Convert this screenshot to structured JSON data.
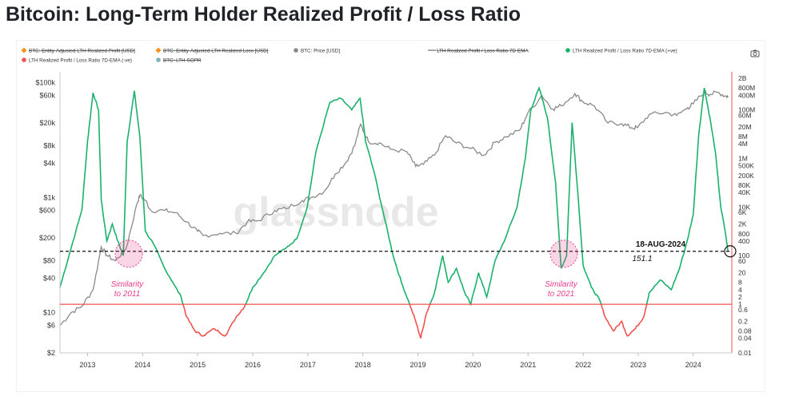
{
  "page": {
    "title": "Bitcoin: Long-Term Holder Realized Profit / Loss Ratio"
  },
  "legend": [
    {
      "label": "BTC: Entity-Adjusted LTH Realized Profit [USD]",
      "color": "#f7931a",
      "marker": "diamond",
      "struck": true
    },
    {
      "label": "BTC: Entity-Adjusted LTH Realized Loss [USD]",
      "color": "#f7931a",
      "marker": "diamond",
      "struck": true
    },
    {
      "label": "BTC: Price [USD]",
      "color": "#888888",
      "marker": "dot",
      "struck": false
    },
    {
      "label": "LTH Realized Profit / Loss Ratio 7D-EMA",
      "color": "#888888",
      "marker": "line",
      "struck": true
    },
    {
      "label": "LTH Realized Profit / Loss Ratio 7D-EMA (+ve)",
      "color": "#1ab26b",
      "marker": "dot",
      "struck": false
    },
    {
      "label": "LTH Realized Profit / Loss Ratio 7D-EMA (-ve)",
      "color": "#ef5350",
      "marker": "dot",
      "struck": false
    },
    {
      "label": "BTC: LTH-SOPR",
      "color": "#7fb3b3",
      "marker": "dot",
      "struck": true
    }
  ],
  "camera_icon": "camera-icon",
  "watermark": "glassnode",
  "colors": {
    "positive": "#1ab26b",
    "negative": "#ef5350",
    "price": "#8a8a8a",
    "baseline": "#ef5350",
    "highlight": "#e6408f"
  },
  "annotations": {
    "date_label": "18-AUG-2024",
    "value_label": "151.1",
    "similarity_left": [
      "Similarity",
      "to 2011"
    ],
    "similarity_right": [
      "Similarity",
      "to 2021"
    ]
  },
  "chart_data": {
    "type": "line",
    "x_axis": {
      "ticks": [
        "2013",
        "2014",
        "2015",
        "2016",
        "2017",
        "2018",
        "2019",
        "2020",
        "2021",
        "2022",
        "2023",
        "2024"
      ],
      "range": [
        "2012-06",
        "2024-09"
      ]
    },
    "y_axis_left": {
      "label": "BTC: Price [USD]",
      "scale": "log",
      "ticks": [
        "$100k",
        "$60k",
        "$20k",
        "$8k",
        "$4k",
        "$1k",
        "$600",
        "$200",
        "$80",
        "$40",
        "$10",
        "$6",
        "$2"
      ],
      "tick_values": [
        100000,
        60000,
        20000,
        8000,
        4000,
        1000,
        600,
        200,
        80,
        40,
        10,
        6,
        2
      ],
      "range": [
        2,
        120000
      ]
    },
    "y_axis_right": {
      "label": "LTH Realized Profit / Loss Ratio 7D-EMA",
      "scale": "log",
      "ticks": [
        "2B",
        "800M",
        "400M",
        "100M",
        "60M",
        "20M",
        "8M",
        "4M",
        "1M",
        "500K",
        "200K",
        "80K",
        "40K",
        "10K",
        "6K",
        "2K",
        "800",
        "400",
        "100",
        "60",
        "20",
        "8",
        "4",
        "2",
        "1",
        "0.6",
        "0.2",
        "0.08",
        "0.04",
        "0.01"
      ],
      "tick_values": [
        2000000000,
        800000000,
        400000000,
        100000000,
        60000000,
        20000000,
        8000000,
        4000000,
        1000000,
        500000,
        200000,
        80000,
        40000,
        10000,
        6000,
        2000,
        800,
        400,
        100,
        60,
        20,
        8,
        4,
        2,
        1,
        0.6,
        0.2,
        0.08,
        0.04,
        0.01
      ],
      "range": [
        0.01,
        2000000000
      ]
    },
    "reference_lines": [
      {
        "axis": "right",
        "value": 151.1,
        "style": "dashed",
        "label": "18-AUG-2024"
      },
      {
        "axis": "right",
        "value": 1,
        "style": "solid",
        "color": "#ef5350"
      }
    ],
    "series": [
      {
        "name": "BTC: Price [USD]",
        "axis": "left",
        "color": "#8a8a8a",
        "points": [
          [
            2012.5,
            6
          ],
          [
            2012.7,
            10
          ],
          [
            2012.9,
            13
          ],
          [
            2013.1,
            25
          ],
          [
            2013.25,
            140
          ],
          [
            2013.35,
            100
          ],
          [
            2013.5,
            80
          ],
          [
            2013.7,
            130
          ],
          [
            2013.9,
            800
          ],
          [
            2013.95,
            1100
          ],
          [
            2014.05,
            900
          ],
          [
            2014.15,
            600
          ],
          [
            2014.4,
            600
          ],
          [
            2014.6,
            550
          ],
          [
            2014.8,
            380
          ],
          [
            2015.0,
            260
          ],
          [
            2015.1,
            220
          ],
          [
            2015.4,
            240
          ],
          [
            2015.7,
            240
          ],
          [
            2015.9,
            380
          ],
          [
            2016.1,
            400
          ],
          [
            2016.4,
            600
          ],
          [
            2016.6,
            650
          ],
          [
            2016.9,
            900
          ],
          [
            2017.05,
            1000
          ],
          [
            2017.3,
            1300
          ],
          [
            2017.5,
            2600
          ],
          [
            2017.7,
            4200
          ],
          [
            2017.85,
            8000
          ],
          [
            2017.96,
            19000
          ],
          [
            2018.1,
            9500
          ],
          [
            2018.3,
            9000
          ],
          [
            2018.5,
            7000
          ],
          [
            2018.8,
            6300
          ],
          [
            2018.96,
            3500
          ],
          [
            2019.1,
            3800
          ],
          [
            2019.3,
            5500
          ],
          [
            2019.5,
            12000
          ],
          [
            2019.7,
            9000
          ],
          [
            2019.96,
            7200
          ],
          [
            2020.2,
            5500
          ],
          [
            2020.4,
            9200
          ],
          [
            2020.6,
            11500
          ],
          [
            2020.85,
            15000
          ],
          [
            2020.99,
            29000
          ],
          [
            2021.25,
            60000
          ],
          [
            2021.45,
            35000
          ],
          [
            2021.6,
            40000
          ],
          [
            2021.85,
            65000
          ],
          [
            2021.99,
            47000
          ],
          [
            2022.2,
            40000
          ],
          [
            2022.45,
            20000
          ],
          [
            2022.7,
            19500
          ],
          [
            2022.88,
            16500
          ],
          [
            2022.99,
            16600
          ],
          [
            2023.2,
            28000
          ],
          [
            2023.5,
            30500
          ],
          [
            2023.7,
            27000
          ],
          [
            2023.9,
            37000
          ],
          [
            2024.0,
            43000
          ],
          [
            2024.2,
            70000
          ],
          [
            2024.3,
            63000
          ],
          [
            2024.45,
            68000
          ],
          [
            2024.6,
            58000
          ],
          [
            2024.63,
            59000
          ]
        ]
      },
      {
        "name": "LTH Realized Profit / Loss Ratio 7D-EMA",
        "axis": "right",
        "threshold": 1,
        "color_above": "#1ab26b",
        "color_below": "#ef5350",
        "points": [
          [
            2012.5,
            5
          ],
          [
            2012.7,
            200
          ],
          [
            2012.9,
            8000
          ],
          [
            2013.0,
            5000000
          ],
          [
            2013.1,
            500000000
          ],
          [
            2013.2,
            100000000
          ],
          [
            2013.25,
            20000
          ],
          [
            2013.35,
            400
          ],
          [
            2013.45,
            2000
          ],
          [
            2013.55,
            400
          ],
          [
            2013.65,
            100
          ],
          [
            2013.72,
            5000000
          ],
          [
            2013.85,
            600000000
          ],
          [
            2013.95,
            8000000
          ],
          [
            2014.05,
            1000
          ],
          [
            2014.2,
            300
          ],
          [
            2014.4,
            30
          ],
          [
            2014.55,
            8
          ],
          [
            2014.7,
            2
          ],
          [
            2014.8,
            0.3
          ],
          [
            2014.95,
            0.08
          ],
          [
            2015.1,
            0.05
          ],
          [
            2015.3,
            0.1
          ],
          [
            2015.5,
            0.05
          ],
          [
            2015.7,
            0.3
          ],
          [
            2015.85,
            0.8
          ],
          [
            2016.0,
            5
          ],
          [
            2016.2,
            20
          ],
          [
            2016.4,
            100
          ],
          [
            2016.6,
            200
          ],
          [
            2016.8,
            500
          ],
          [
            2016.99,
            10000
          ],
          [
            2017.15,
            2000000
          ],
          [
            2017.4,
            200000000
          ],
          [
            2017.6,
            300000000
          ],
          [
            2017.8,
            100000000
          ],
          [
            2017.95,
            300000000
          ],
          [
            2018.05,
            5000000
          ],
          [
            2018.2,
            300000
          ],
          [
            2018.4,
            3000
          ],
          [
            2018.55,
            100
          ],
          [
            2018.7,
            8
          ],
          [
            2018.85,
            1
          ],
          [
            2018.96,
            0.2
          ],
          [
            2019.05,
            0.04
          ],
          [
            2019.15,
            0.4
          ],
          [
            2019.3,
            3
          ],
          [
            2019.45,
            100
          ],
          [
            2019.55,
            8
          ],
          [
            2019.7,
            30
          ],
          [
            2019.85,
            3
          ],
          [
            2019.96,
            1
          ],
          [
            2020.1,
            20
          ],
          [
            2020.25,
            2
          ],
          [
            2020.4,
            60
          ],
          [
            2020.6,
            600
          ],
          [
            2020.8,
            10000
          ],
          [
            2020.95,
            1000000
          ],
          [
            2021.05,
            100000000
          ],
          [
            2021.2,
            800000000
          ],
          [
            2021.35,
            50000000
          ],
          [
            2021.5,
            100000
          ],
          [
            2021.6,
            30
          ],
          [
            2021.7,
            100
          ],
          [
            2021.8,
            30000000
          ],
          [
            2021.9,
            50000
          ],
          [
            2022.0,
            40
          ],
          [
            2022.15,
            5
          ],
          [
            2022.3,
            1.5
          ],
          [
            2022.4,
            0.3
          ],
          [
            2022.55,
            0.08
          ],
          [
            2022.7,
            0.2
          ],
          [
            2022.8,
            0.05
          ],
          [
            2022.95,
            0.1
          ],
          [
            2023.1,
            0.3
          ],
          [
            2023.2,
            3
          ],
          [
            2023.4,
            10
          ],
          [
            2023.6,
            4
          ],
          [
            2023.75,
            30
          ],
          [
            2023.9,
            500
          ],
          [
            2024.0,
            5000
          ],
          [
            2024.1,
            10000000
          ],
          [
            2024.2,
            800000000
          ],
          [
            2024.3,
            50000000
          ],
          [
            2024.4,
            2000000
          ],
          [
            2024.5,
            10000
          ],
          [
            2024.58,
            1000
          ],
          [
            2024.63,
            151.1
          ]
        ]
      }
    ],
    "grid": false,
    "legend_position": "top"
  }
}
